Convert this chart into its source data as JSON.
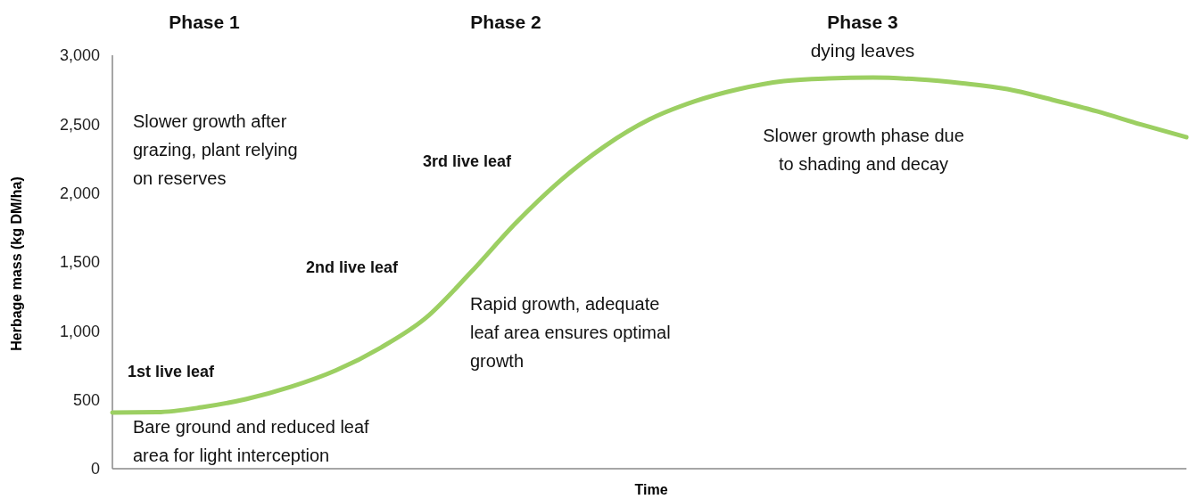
{
  "chart_data": {
    "type": "line",
    "xlabel": "Time",
    "ylabel": "Herbage mass (kg DM/ha)",
    "categories": [
      null,
      null,
      null,
      null,
      null,
      null,
      null,
      null,
      null,
      null,
      null,
      null,
      null,
      null,
      null,
      null,
      null,
      null,
      null,
      null,
      null,
      null,
      null,
      null,
      null
    ],
    "series": [
      {
        "color": "#9ccf62",
        "values": [
          407,
          410,
          446,
          506,
          595,
          714,
          879,
          1093,
          1422,
          1778,
          2088,
          2340,
          2534,
          2664,
          2754,
          2812,
          2832,
          2838,
          2825,
          2796,
          2754,
          2677,
          2593,
          2496,
          2405
        ]
      }
    ],
    "ylim": [
      0,
      3000
    ],
    "yticks": [
      0,
      500,
      {
        "value": 1000,
        "label": "1,000"
      },
      {
        "value": 1500,
        "label": "1,500"
      },
      {
        "value": 2000,
        "label": "2,000"
      },
      {
        "value": 2500,
        "label": "2,500"
      },
      {
        "value": 3000,
        "label": "3,000"
      }
    ],
    "tick_labels": "y",
    "annotations": [
      "Phase 1",
      "Phase 2",
      "Phase 3",
      "dying leaves",
      "Slower growth after\ngrazing, plant relying\non reserves",
      "3rd live leaf",
      "2nd live leaf",
      "1st live leaf",
      "Bare ground and reduced leaf\narea for light interception",
      "Rapid growth, adequate\nleaf area ensures optimal\ngrowth",
      "Slower growth phase due\nto shading and decay"
    ]
  }
}
